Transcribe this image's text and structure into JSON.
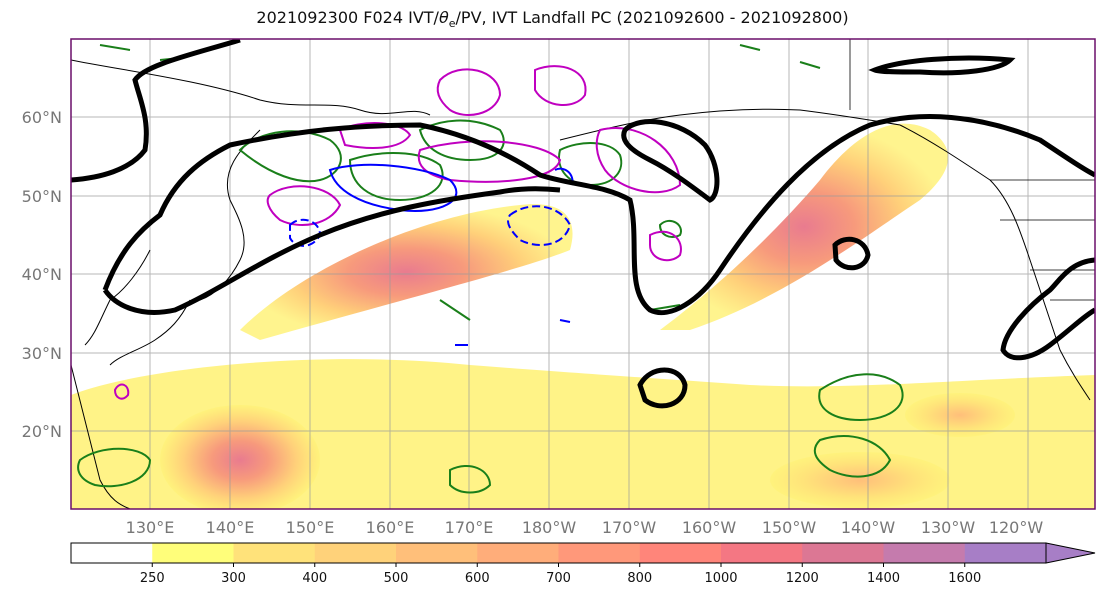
{
  "title": "2021092300 F024 IVT/θe/PV, IVT Landfall PC (2021092600 - 2021092800)",
  "title_parts": {
    "prefix": "2021092300 F024 IVT/",
    "theta": "θ",
    "sub": "e",
    "suffix": "/PV, IVT Landfall PC (2021092600 - 2021092800)"
  },
  "lat_labels": [
    "60°N",
    "50°N",
    "40°N",
    "30°N",
    "20°N"
  ],
  "lon_labels": [
    "130°E",
    "140°E",
    "150°E",
    "160°E",
    "170°E",
    "180°W",
    "170°W",
    "160°W",
    "150°W",
    "140°W",
    "130°W",
    "120°W"
  ],
  "colorbar": {
    "ticks": [
      "250",
      "300",
      "400",
      "500",
      "600",
      "700",
      "800",
      "1000",
      "1200",
      "1400",
      "1600"
    ],
    "colors": [
      "#ffffff",
      "#fffe7a",
      "#ffe27a",
      "#ffd27a",
      "#ffbf7a",
      "#ffad7a",
      "#ff987a",
      "#ff857a",
      "#f47783",
      "#dc7794",
      "#c57bad",
      "#a77ec6"
    ],
    "extend": "max"
  },
  "colors": {
    "ivt_fill_low": "#fff27a",
    "ivt_fill_high": "#f57a80",
    "pc_contour": "#000000",
    "theta_contour": "#1a7f1a",
    "pv_positive": "#c000c0",
    "pv_negative": "#0000ff"
  }
}
